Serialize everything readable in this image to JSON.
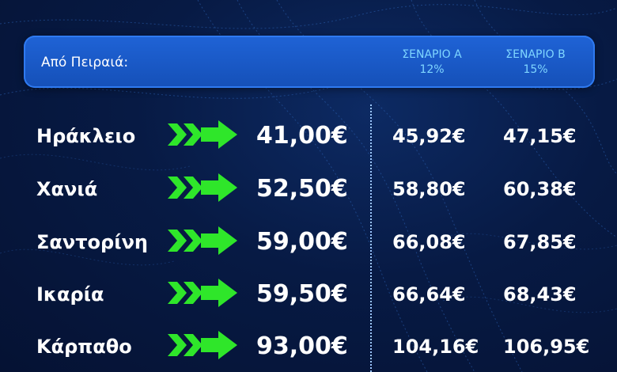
{
  "header": {
    "title": "Από Πειραιά:",
    "scenario_a": {
      "label": "ΣΕΝΑΡΙΟ Α",
      "pct": "12%"
    },
    "scenario_b": {
      "label": "ΣΕΝΑΡΙΟ Β",
      "pct": "15%"
    }
  },
  "accent_color": "#2fe62a",
  "rows": [
    {
      "destination": "Ηράκλειο",
      "base": "41,00€",
      "scenario_a": "45,92€",
      "scenario_b": "47,15€"
    },
    {
      "destination": "Χανιά",
      "base": "52,50€",
      "scenario_a": "58,80€",
      "scenario_b": "60,38€"
    },
    {
      "destination": "Σαντορίνη",
      "base": "59,00€",
      "scenario_a": "66,08€",
      "scenario_b": "67,85€"
    },
    {
      "destination": "Ικαρία",
      "base": "59,50€",
      "scenario_a": "66,64€",
      "scenario_b": "68,43€"
    },
    {
      "destination": "Κάρπαθο",
      "base": "93,00€",
      "scenario_a": "104,16€",
      "scenario_b": "106,95€"
    }
  ]
}
